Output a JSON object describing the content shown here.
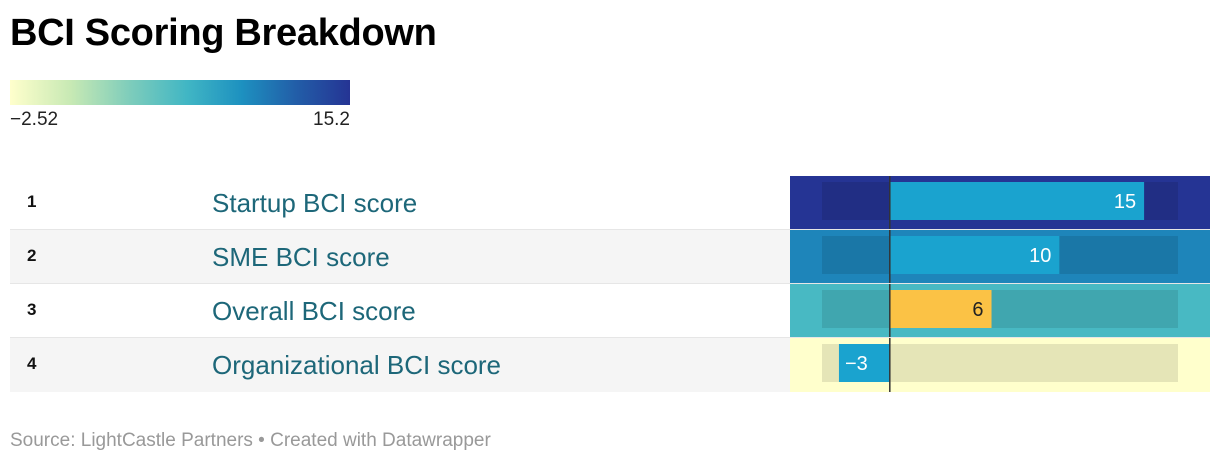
{
  "title": "BCI Scoring Breakdown",
  "source": "Source: LightCastle Partners • Created with Datawrapper",
  "legend": {
    "min_label": "−2.52",
    "max_label": "15.2"
  },
  "colors": {
    "gradient": [
      "#ffffcc",
      "#c7e9b4",
      "#7fcdbb",
      "#41b6c4",
      "#1d91c0",
      "#225ea8",
      "#253494"
    ],
    "bar_default": "#1aa3cf",
    "bar_highlight": "#fbc245",
    "bar_bg": "rgba(0,0,0,0.1)",
    "baseline": "#333333"
  },
  "chart_data": {
    "type": "table",
    "columns": [
      "rank",
      "category",
      "score"
    ],
    "color_scale": {
      "min": -2.52,
      "max": 15.2
    },
    "bar_domain": [
      -4,
      17
    ],
    "rows": [
      {
        "rank": "1",
        "label": "Startup BCI score",
        "value": 15,
        "display": "15",
        "color_value": 15.2,
        "highlight": false
      },
      {
        "rank": "2",
        "label": "SME BCI score",
        "value": 10,
        "display": "10",
        "color_value": 10,
        "highlight": false
      },
      {
        "rank": "3",
        "label": "Overall BCI score",
        "value": 6,
        "display": "6",
        "color_value": 6,
        "highlight": true
      },
      {
        "rank": "4",
        "label": "Organizational BCI score",
        "value": -3,
        "display": "−3",
        "color_value": -2.52,
        "highlight": false
      }
    ]
  }
}
